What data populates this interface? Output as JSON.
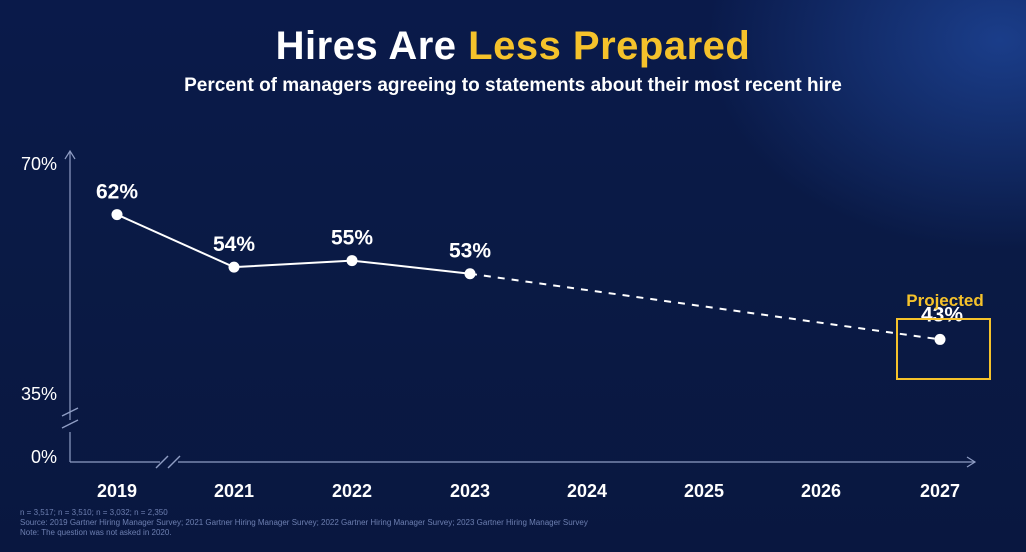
{
  "header": {
    "title_part1": "Hires Are ",
    "title_part2": "Less Prepared",
    "subtitle": "Percent of managers agreeing to statements about their most recent hire"
  },
  "colors": {
    "accent": "#f5c22b",
    "line": "#ffffff",
    "axis": "#8f9dc4"
  },
  "chart_data": {
    "type": "line",
    "title": "Hires Are Less Prepared",
    "subtitle": "Percent of managers agreeing to statements about their most recent hire",
    "categories": [
      "2019",
      "2021",
      "2022",
      "2023",
      "2024",
      "2025",
      "2026",
      "2027"
    ],
    "y_ticks": [
      "0%",
      "35%",
      "70%"
    ],
    "axis_breaks": [
      "y between 0% and 35%",
      "x between 2019 and 2021"
    ],
    "series": [
      {
        "values": [
          62,
          54,
          55,
          53
        ],
        "x": [
          "2019",
          "2021",
          "2022",
          "2023"
        ],
        "data_labels": [
          "62%",
          "54%",
          "55%",
          "53%"
        ],
        "style": "solid"
      },
      {
        "values": [
          53,
          43
        ],
        "x": [
          "2023",
          "2027"
        ],
        "data_labels": [
          "",
          "43%"
        ],
        "style": "dashed"
      }
    ],
    "annotations": [
      {
        "text": "Projected",
        "x": "2027",
        "value": 43
      }
    ]
  },
  "footnotes": {
    "sample_sizes": "n = 3,517; n = 3,510; n = 3,032; n = 2,350",
    "source": "Source: 2019 Gartner Hiring Manager Survey; 2021 Gartner Hiring Manager Survey; 2022 Gartner Hiring Manager Survey; 2023 Gartner Hiring Manager Survey",
    "note": "Note: The question was not asked in 2020."
  }
}
